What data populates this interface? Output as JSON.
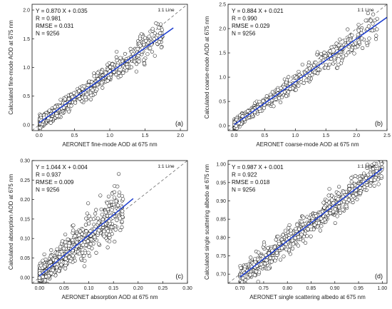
{
  "chart_data": [
    {
      "type": "scatter",
      "panel_tag": "(a)",
      "xlabel": "AERONET fine-mode AOD at 675 nm",
      "ylabel": "Calculated fine-mode AOD at 675 nm",
      "xlim": [
        -0.1,
        2.1
      ],
      "ylim": [
        -0.1,
        2.1
      ],
      "xticks": [
        "0.0",
        "0.5",
        "1.0",
        "1.5",
        "2.0"
      ],
      "yticks": [
        "0.0",
        "0.5",
        "1.0",
        "1.5",
        "2.0"
      ],
      "tick_step": 0.5,
      "stats": [
        "Y = 0.870 X + 0.035",
        "R = 0.981",
        "RMSE = 0.031",
        "N = 9256"
      ],
      "oneone_label": "1:1 Line",
      "fit": {
        "slope": 0.87,
        "intercept": 0.035,
        "x_range": [
          0.0,
          1.9
        ]
      },
      "point_spread": {
        "x_min": 0.01,
        "x_max": 1.75,
        "skew": 2.2,
        "noise": 0.045,
        "rel_noise": 0.06
      }
    },
    {
      "type": "scatter",
      "panel_tag": "(b)",
      "xlabel": "AERONET coarse-mode AOD at 675 nm",
      "ylabel": "Calculated coarse-mode AOD at 675 nm",
      "xlim": [
        -0.1,
        2.5
      ],
      "ylim": [
        -0.1,
        2.5
      ],
      "xticks": [
        "0.0",
        "0.5",
        "1.0",
        "1.5",
        "2.0",
        "2.5"
      ],
      "yticks": [
        "0.0",
        "0.5",
        "1.0",
        "1.5",
        "2.0",
        "2.5"
      ],
      "tick_step": 0.5,
      "stats": [
        "Y = 0.884 X + 0.021",
        "R = 0.990",
        "RMSE = 0.029",
        "N = 9256"
      ],
      "oneone_label": "1:1 Line",
      "fit": {
        "slope": 0.884,
        "intercept": 0.021,
        "x_range": [
          0.0,
          2.5
        ]
      },
      "point_spread": {
        "x_min": 0.005,
        "x_max": 2.35,
        "skew": 2.6,
        "noise": 0.04,
        "rel_noise": 0.05
      }
    },
    {
      "type": "scatter",
      "panel_tag": "(c)",
      "xlabel": "AERONET absorption AOD at 675 nm",
      "ylabel": "Calculated absorption AOD at 675 nm",
      "xlim": [
        -0.015,
        0.3
      ],
      "ylim": [
        -0.015,
        0.3
      ],
      "xticks": [
        "0.00",
        "0.05",
        "0.10",
        "0.15",
        "0.20",
        "0.25",
        "0.30"
      ],
      "yticks": [
        "0.00",
        "0.05",
        "0.10",
        "0.15",
        "0.20",
        "0.25",
        "0.30"
      ],
      "tick_step": 0.05,
      "stats": [
        "Y = 1.044 X + 0.004",
        "R = 0.937",
        "RMSE = 0.009",
        "N = 9256"
      ],
      "oneone_label": "1:1 Line",
      "fit": {
        "slope": 1.044,
        "intercept": 0.004,
        "x_range": [
          0.0,
          0.19
        ]
      },
      "point_spread": {
        "x_min": 0.0,
        "x_max": 0.17,
        "skew": 1.8,
        "noise": 0.012,
        "rel_noise": 0.12
      }
    },
    {
      "type": "scatter",
      "panel_tag": "(d)",
      "xlabel": "AERONET single scattering albedo at 675 nm",
      "ylabel": "Calculated single scattering albedo at 675 nm",
      "xlim": [
        0.675,
        1.01
      ],
      "ylim": [
        0.675,
        1.01
      ],
      "xticks": [
        "0.70",
        "0.75",
        "0.80",
        "0.85",
        "0.90",
        "0.95",
        "1.00"
      ],
      "yticks": [
        "0.70",
        "0.75",
        "0.80",
        "0.85",
        "0.90",
        "0.95",
        "1.00"
      ],
      "tick_step": 0.05,
      "stats": [
        "Y = 0.987 X + 0.001",
        "R = 0.922",
        "RMSE = 0.018",
        "N = 9256"
      ],
      "oneone_label": "1:1 Line",
      "fit": {
        "slope": 0.987,
        "intercept": 0.001,
        "x_range": [
          0.7,
          1.0
        ]
      },
      "point_spread": {
        "x_min": 0.7,
        "x_max": 1.0,
        "skew": 0.35,
        "noise": 0.017,
        "rel_noise": 0.0
      }
    }
  ],
  "colors": {
    "fit_line": "#1f3fcf",
    "oneone_line": "#6b6b6b",
    "marker_edge": "#1a1a1a",
    "marker_fill": "#ffffff"
  }
}
